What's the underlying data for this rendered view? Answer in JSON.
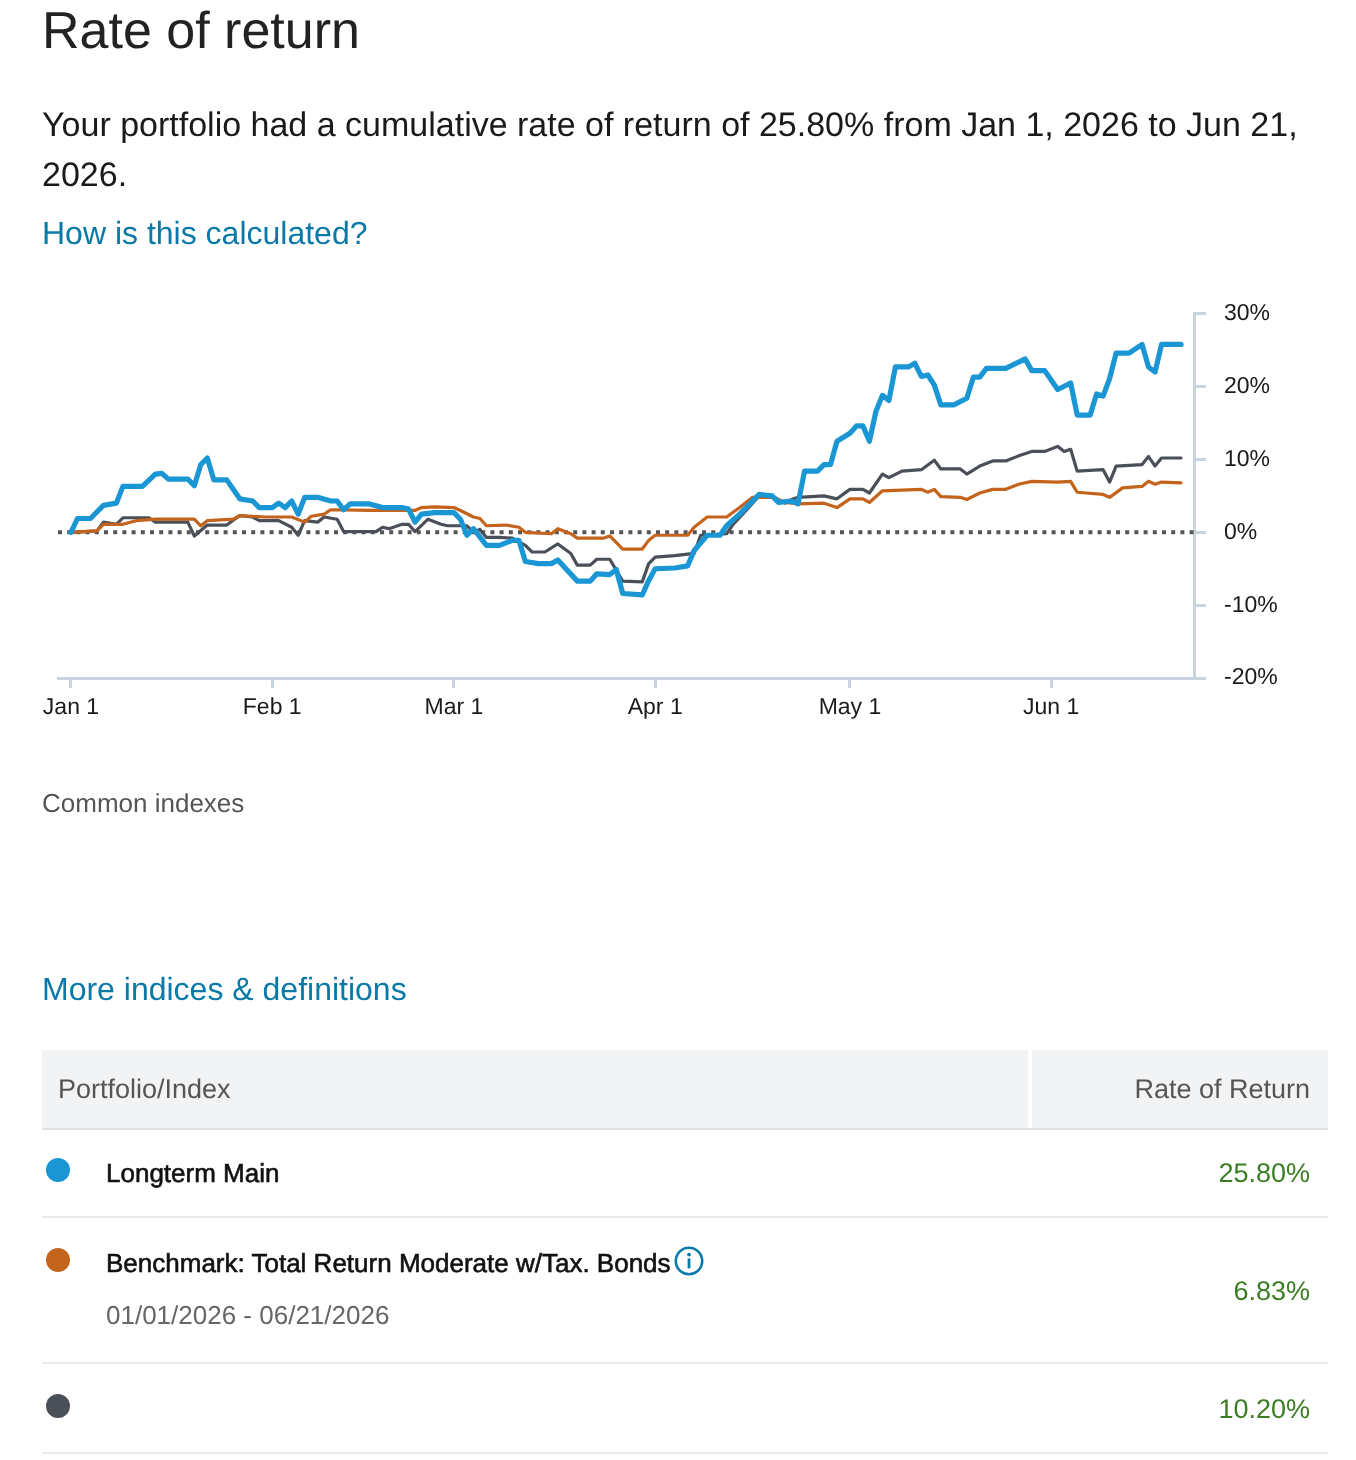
{
  "chart_data": {
    "type": "line",
    "title": "Rate of return",
    "subtitle": "Your portfolio had a cumulative rate of return of 25.80% from Jan 1, 2026 to Jun 21, 2026.",
    "annotations": [
      "How is this calculated?",
      "Common indexes",
      "More indices & definitions",
      "Portfolio/Index",
      "Rate of Return",
      "25.80%",
      "6.83%",
      "01/01/2026 - 06/21/2026",
      "10.20%"
    ],
    "xlim": [
      "2025-12-30",
      "2026-06-23"
    ],
    "xticks": [
      {
        "value": "2026-01-01",
        "label": "Jan 1"
      },
      {
        "value": "2026-02-01",
        "label": "Feb 1"
      },
      {
        "value": "2026-03-01",
        "label": "Mar 1"
      },
      {
        "value": "2026-04-01",
        "label": "Apr 1"
      },
      {
        "value": "2026-05-01",
        "label": "May 1"
      },
      {
        "value": "2026-06-01",
        "label": "Jun 1"
      }
    ],
    "ylim": [
      -20,
      30
    ],
    "yticks": [
      {
        "value": 30,
        "label": "30%"
      },
      {
        "value": 20,
        "label": "20%"
      },
      {
        "value": 10,
        "label": "10%"
      },
      {
        "value": 0,
        "label": "0%"
      },
      {
        "value": -10,
        "label": "-10%"
      },
      {
        "value": -20,
        "label": "-20%"
      }
    ],
    "grid": false,
    "legend": "bottom",
    "marker": "none",
    "ref_lines": [
      {
        "axis": "y",
        "value": 0,
        "line_style": "dotted",
        "color": "#555555"
      }
    ],
    "series": [
      {
        "name": "Longterm Main",
        "color": "#1a96d4",
        "x": [
          "2026-01-01",
          "2026-01-02",
          "2026-01-04",
          "2026-01-06",
          "2026-01-08",
          "2026-01-09",
          "2026-01-12",
          "2026-01-14",
          "2026-01-15",
          "2026-01-16",
          "2026-01-19",
          "2026-01-20",
          "2026-01-21",
          "2026-01-22",
          "2026-01-23",
          "2026-01-25",
          "2026-01-27",
          "2026-01-29",
          "2026-01-30",
          "2026-02-01",
          "2026-02-02",
          "2026-02-03",
          "2026-02-04",
          "2026-02-05",
          "2026-02-06",
          "2026-02-08",
          "2026-02-10",
          "2026-02-11",
          "2026-02-12",
          "2026-02-13",
          "2026-02-16",
          "2026-02-18",
          "2026-02-21",
          "2026-02-22",
          "2026-02-23",
          "2026-02-24",
          "2026-02-26",
          "2026-03-01",
          "2026-03-02",
          "2026-03-03",
          "2026-03-04",
          "2026-03-06",
          "2026-03-08",
          "2026-03-10",
          "2026-03-11",
          "2026-03-12",
          "2026-03-14",
          "2026-03-16",
          "2026-03-17",
          "2026-03-20",
          "2026-03-22",
          "2026-03-23",
          "2026-03-25",
          "2026-03-26",
          "2026-03-27",
          "2026-03-30",
          "2026-03-31",
          "2026-04-01",
          "2026-04-04",
          "2026-04-06",
          "2026-04-07",
          "2026-04-09",
          "2026-04-11",
          "2026-04-12",
          "2026-04-14",
          "2026-04-16",
          "2026-04-17",
          "2026-04-19",
          "2026-04-20",
          "2026-04-22",
          "2026-04-23",
          "2026-04-24",
          "2026-04-26",
          "2026-04-27",
          "2026-04-28",
          "2026-04-29",
          "2026-05-01",
          "2026-05-02",
          "2026-05-03",
          "2026-05-04",
          "2026-05-05",
          "2026-05-06",
          "2026-05-07",
          "2026-05-08",
          "2026-05-10",
          "2026-05-11",
          "2026-05-12",
          "2026-05-13",
          "2026-05-14",
          "2026-05-15",
          "2026-05-17",
          "2026-05-19",
          "2026-05-20",
          "2026-05-21",
          "2026-05-22",
          "2026-05-25",
          "2026-05-28",
          "2026-05-29",
          "2026-05-31",
          "2026-06-02",
          "2026-06-04",
          "2026-06-05",
          "2026-06-07",
          "2026-06-08",
          "2026-06-09",
          "2026-06-10",
          "2026-06-11",
          "2026-06-13",
          "2026-06-15",
          "2026-06-16",
          "2026-06-17",
          "2026-06-18",
          "2026-06-21"
        ],
        "values": [
          0,
          1.9,
          1.9,
          3.7,
          4.0,
          6.3,
          6.3,
          8.0,
          8.1,
          7.3,
          7.3,
          6.4,
          9.3,
          10.2,
          7.2,
          7.2,
          4.6,
          4.3,
          3.4,
          3.4,
          4.0,
          3.4,
          4.3,
          2.5,
          4.8,
          4.8,
          4.3,
          4.3,
          3.1,
          3.9,
          3.9,
          3.4,
          3.4,
          3.2,
          1.4,
          2.5,
          2.7,
          2.7,
          1.8,
          -0.4,
          0.5,
          -1.8,
          -1.8,
          -1.1,
          -1.1,
          -4.0,
          -4.3,
          -4.3,
          -3.8,
          -6.7,
          -6.7,
          -5.7,
          -5.8,
          -5.1,
          -8.4,
          -8.6,
          -6.6,
          -5.0,
          -4.9,
          -4.6,
          -2.5,
          -0.4,
          -0.4,
          0.9,
          2.5,
          4.3,
          5.2,
          5.0,
          4.1,
          4.3,
          3.9,
          8.4,
          8.4,
          9.3,
          9.3,
          12.5,
          13.6,
          14.6,
          14.6,
          12.5,
          16.6,
          18.8,
          18.1,
          22.7,
          22.7,
          23.2,
          21.4,
          21.6,
          20.2,
          17.5,
          17.5,
          18.4,
          21.3,
          21.3,
          22.5,
          22.5,
          23.8,
          22.2,
          22.2,
          19.6,
          20.5,
          16.1,
          16.1,
          19.0,
          18.7,
          21.1,
          24.6,
          24.6,
          25.8,
          22.7,
          22.0,
          25.8,
          25.8
        ]
      },
      {
        "name": "Benchmark: Total Return Moderate w/Tax. Bonds",
        "color": "#c4641c",
        "x": [
          "2026-01-01",
          "2026-01-05",
          "2026-01-06",
          "2026-01-09",
          "2026-01-11",
          "2026-01-14",
          "2026-01-20",
          "2026-01-21",
          "2026-01-22",
          "2026-01-26",
          "2026-01-27",
          "2026-01-31",
          "2026-02-04",
          "2026-02-06",
          "2026-02-07",
          "2026-02-09",
          "2026-02-10",
          "2026-02-16",
          "2026-02-23",
          "2026-02-24",
          "2026-02-26",
          "2026-03-01",
          "2026-03-02",
          "2026-03-04",
          "2026-03-05",
          "2026-03-06",
          "2026-03-09",
          "2026-03-11",
          "2026-03-12",
          "2026-03-16",
          "2026-03-17",
          "2026-03-19",
          "2026-03-20",
          "2026-03-24",
          "2026-03-25",
          "2026-03-27",
          "2026-03-30",
          "2026-03-31",
          "2026-04-01",
          "2026-04-06",
          "2026-04-07",
          "2026-04-09",
          "2026-04-12",
          "2026-04-14",
          "2026-04-16",
          "2026-04-19",
          "2026-04-21",
          "2026-04-23",
          "2026-04-27",
          "2026-04-29",
          "2026-05-01",
          "2026-05-03",
          "2026-05-04",
          "2026-05-06",
          "2026-05-12",
          "2026-05-13",
          "2026-05-14",
          "2026-05-15",
          "2026-05-18",
          "2026-05-19",
          "2026-05-21",
          "2026-05-23",
          "2026-05-25",
          "2026-05-27",
          "2026-05-29",
          "2026-06-02",
          "2026-06-04",
          "2026-06-05",
          "2026-06-09",
          "2026-06-10",
          "2026-06-12",
          "2026-06-15",
          "2026-06-16",
          "2026-06-17",
          "2026-06-18",
          "2026-06-21"
        ],
        "values": [
          0,
          0.2,
          1.1,
          1.1,
          1.6,
          1.8,
          1.8,
          0.9,
          1.6,
          1.8,
          2.3,
          2.1,
          2.1,
          1.4,
          2.2,
          2.5,
          3.1,
          3.0,
          3.0,
          3.4,
          3.5,
          3.4,
          3.0,
          2.1,
          1.9,
          0.9,
          1.0,
          0.7,
          0.0,
          -0.2,
          0.5,
          -0.2,
          -0.8,
          -0.8,
          -0.5,
          -2.3,
          -2.3,
          -1.1,
          -0.4,
          -0.4,
          0.7,
          2.1,
          2.1,
          3.4,
          4.8,
          4.8,
          4.1,
          3.9,
          4.0,
          3.4,
          4.6,
          4.6,
          4.1,
          5.7,
          5.9,
          5.5,
          5.9,
          4.9,
          4.8,
          4.5,
          5.4,
          5.9,
          5.9,
          6.6,
          7.0,
          6.9,
          7.0,
          5.5,
          5.2,
          4.8,
          6.1,
          6.3,
          7.0,
          6.6,
          6.9,
          6.8
        ]
      },
      {
        "color": "#4b5058",
        "x": [
          "2026-01-01",
          "2026-01-05",
          "2026-01-06",
          "2026-01-08",
          "2026-01-09",
          "2026-01-13",
          "2026-01-14",
          "2026-01-19",
          "2026-01-20",
          "2026-01-22",
          "2026-01-25",
          "2026-01-27",
          "2026-01-29",
          "2026-01-30",
          "2026-02-02",
          "2026-02-04",
          "2026-02-05",
          "2026-02-06",
          "2026-02-08",
          "2026-02-09",
          "2026-02-11",
          "2026-02-12",
          "2026-02-17",
          "2026-02-18",
          "2026-02-19",
          "2026-02-21",
          "2026-02-22",
          "2026-02-23",
          "2026-02-25",
          "2026-02-27",
          "2026-02-28",
          "2026-03-03",
          "2026-03-04",
          "2026-03-05",
          "2026-03-06",
          "2026-03-08",
          "2026-03-10",
          "2026-03-12",
          "2026-03-13",
          "2026-03-15",
          "2026-03-17",
          "2026-03-19",
          "2026-03-20",
          "2026-03-22",
          "2026-03-23",
          "2026-03-25",
          "2026-03-27",
          "2026-03-30",
          "2026-03-31",
          "2026-04-01",
          "2026-04-04",
          "2026-04-05",
          "2026-04-07",
          "2026-04-08",
          "2026-04-12",
          "2026-04-13",
          "2026-04-15",
          "2026-04-17",
          "2026-04-19",
          "2026-04-21",
          "2026-04-22",
          "2026-04-23",
          "2026-04-27",
          "2026-04-29",
          "2026-05-01",
          "2026-05-03",
          "2026-05-04",
          "2026-05-06",
          "2026-05-07",
          "2026-05-09",
          "2026-05-12",
          "2026-05-14",
          "2026-05-15",
          "2026-05-18",
          "2026-05-19",
          "2026-05-21",
          "2026-05-23",
          "2026-05-25",
          "2026-05-27",
          "2026-05-29",
          "2026-05-31",
          "2026-06-02",
          "2026-06-03",
          "2026-06-04",
          "2026-06-05",
          "2026-06-09",
          "2026-06-10",
          "2026-06-11",
          "2026-06-15",
          "2026-06-16",
          "2026-06-17",
          "2026-06-18",
          "2026-06-21"
        ],
        "values": [
          0,
          0.2,
          1.4,
          1.1,
          2.0,
          2.0,
          1.4,
          1.4,
          -0.5,
          1.0,
          1.0,
          2.3,
          2.1,
          1.6,
          1.6,
          0.7,
          -0.4,
          1.6,
          1.4,
          2.1,
          1.8,
          0.1,
          0.1,
          0.7,
          0.5,
          1.1,
          1.1,
          0.1,
          1.8,
          1.1,
          0.9,
          0.9,
          0.0,
          0.4,
          -0.7,
          -0.7,
          -0.8,
          -1.8,
          -2.7,
          -2.7,
          -1.6,
          -2.9,
          -4.5,
          -4.5,
          -3.7,
          -3.7,
          -6.7,
          -6.8,
          -4.3,
          -3.4,
          -3.2,
          -3.1,
          -2.9,
          -0.4,
          -0.2,
          1.1,
          3.0,
          5.0,
          5.0,
          4.0,
          4.5,
          4.8,
          5.0,
          4.6,
          5.9,
          5.9,
          5.4,
          8.0,
          7.5,
          8.4,
          8.6,
          9.9,
          8.7,
          8.7,
          8.0,
          9.1,
          9.8,
          9.8,
          10.5,
          11.1,
          11.1,
          11.8,
          11.1,
          11.4,
          8.4,
          8.6,
          6.9,
          9.1,
          9.3,
          10.4,
          9.1,
          10.2,
          10.2
        ]
      }
    ]
  }
}
